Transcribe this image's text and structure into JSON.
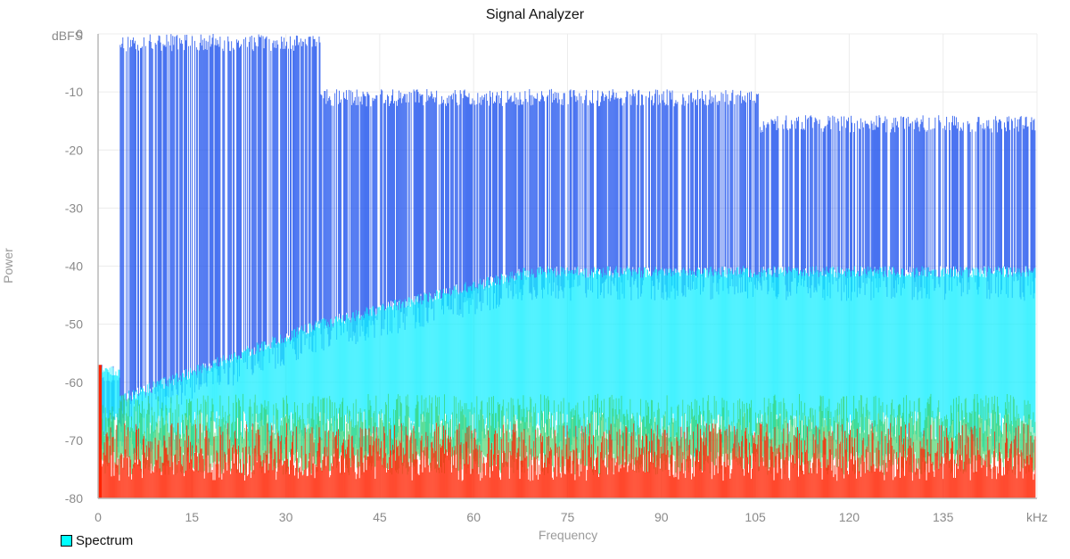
{
  "chart_data": {
    "type": "area",
    "title": "Signal Analyzer",
    "xlabel": "Frequency",
    "ylabel": "Power",
    "x_unit": "kHz",
    "y_unit": "dBFS",
    "xlim": [
      0,
      150
    ],
    "ylim": [
      -80,
      0
    ],
    "x_ticks": [
      0,
      15,
      30,
      45,
      60,
      75,
      90,
      105,
      120,
      135
    ],
    "y_ticks": [
      0,
      -10,
      -20,
      -30,
      -40,
      -50,
      -60,
      -70,
      -80
    ],
    "grid": true,
    "legend_position": "bottom-left",
    "series": [
      {
        "name": "Spectrum",
        "color": "#00ffff",
        "peak_envelope": {
          "x": [
            0.5,
            3.5,
            35.5,
            105.5,
            150
          ],
          "y": [
            -57,
            0,
            -9.5,
            -14,
            -14
          ]
        },
        "average_envelope": {
          "x": [
            3.5,
            35.5,
            69,
            105.5,
            150
          ],
          "y": [
            -62,
            -49,
            -40,
            -40,
            -40
          ]
        },
        "noise_floor": {
          "x": [
            0,
            150
          ],
          "y": [
            -65,
            -65
          ]
        }
      }
    ],
    "colormap": [
      "#ff2200",
      "#33cc55",
      "#11eeff",
      "#2255ee"
    ]
  }
}
